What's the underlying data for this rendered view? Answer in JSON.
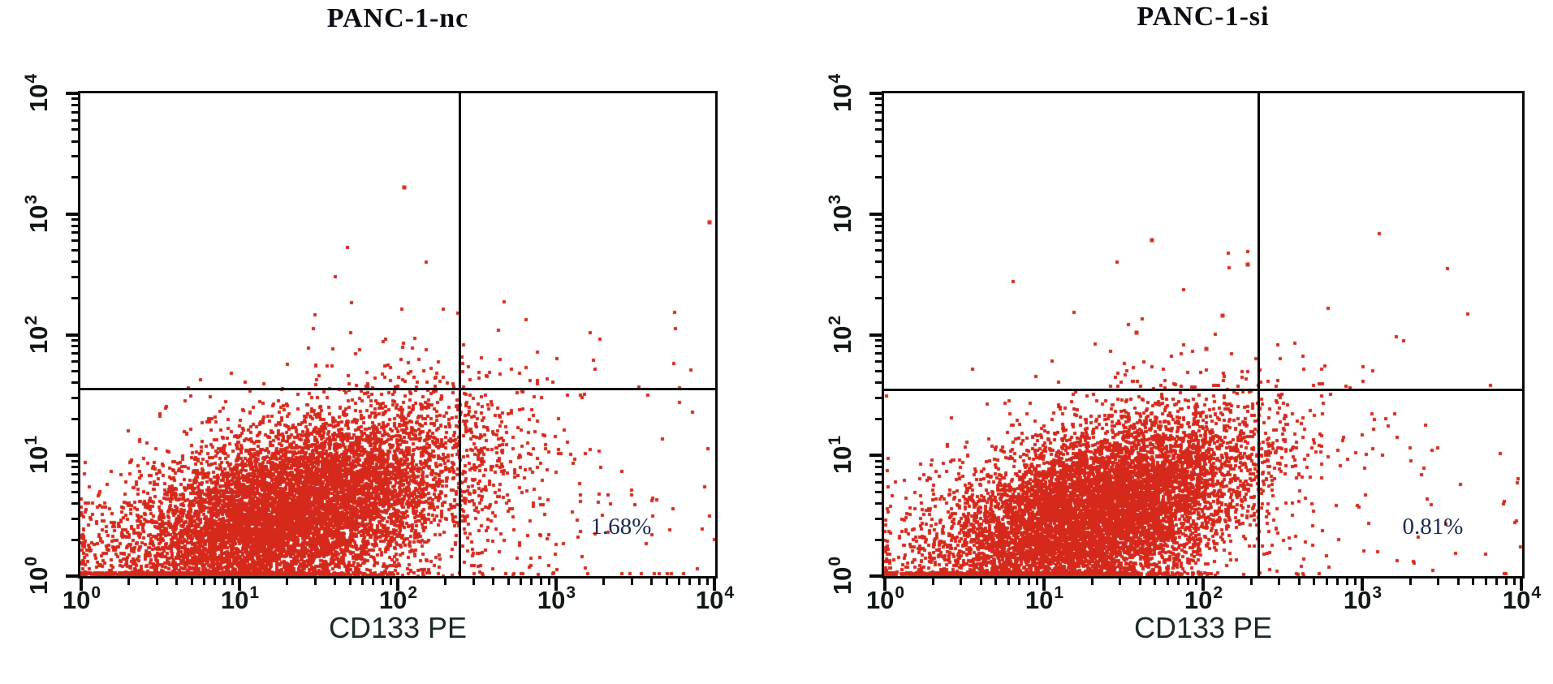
{
  "figure": {
    "background_color": "#ffffff",
    "axis_color": "#0a0a0a",
    "dot_color": "#d5291c",
    "title_color": "#0b0b13",
    "percent_label_color": "#1b2a4e",
    "x_axis_label_color": "#1c2a29"
  },
  "chart_data": [
    {
      "type": "scatter",
      "title": "PANC-1-nc",
      "xlabel": "CD133 PE",
      "ylabel": "",
      "xscale": "log",
      "yscale": "log",
      "xlim": [
        1,
        10000
      ],
      "ylim": [
        1,
        10000
      ],
      "tick_base": "10",
      "x_tick_exponents": [
        0,
        1,
        2,
        3,
        4
      ],
      "y_tick_exponents": [
        0,
        1,
        2,
        3,
        4
      ],
      "grid": false,
      "quadrant_gate": {
        "x": 245,
        "y": 36
      },
      "quadrant_label": {
        "text": "1.68%",
        "quadrant": "lower-right"
      },
      "population": {
        "name": "PANC-1-nc cells",
        "seed": 42,
        "n_core": 9000,
        "center_log": [
          1.32,
          0.52
        ],
        "sigma_log": [
          0.55,
          0.42
        ],
        "correlation": 0.5,
        "n_halo": 560,
        "halo_scale": 1.85,
        "n_positive": 115,
        "color": "#d5291c"
      },
      "outliers_log": [
        [
          2.04,
          3.22
        ],
        [
          3.97,
          2.93
        ]
      ]
    },
    {
      "type": "scatter",
      "title": "PANC-1-si",
      "xlabel": "CD133 PE",
      "ylabel": "",
      "xscale": "log",
      "yscale": "log",
      "xlim": [
        1,
        10000
      ],
      "ylim": [
        1,
        10000
      ],
      "tick_base": "10",
      "x_tick_exponents": [
        0,
        1,
        2,
        3,
        4
      ],
      "y_tick_exponents": [
        0,
        1,
        2,
        3,
        4
      ],
      "grid": false,
      "quadrant_gate": {
        "x": 222,
        "y": 35
      },
      "quadrant_label": {
        "text": "0.81%",
        "quadrant": "lower-right"
      },
      "population": {
        "name": "PANC-1-si cells",
        "seed": 1337,
        "n_core": 8800,
        "center_log": [
          1.3,
          0.5
        ],
        "sigma_log": [
          0.5,
          0.4
        ],
        "correlation": 0.5,
        "n_halo": 470,
        "halo_scale": 1.8,
        "n_positive": 55,
        "color": "#d5291c"
      },
      "outliers_log": [
        [
          1.68,
          2.78
        ],
        [
          2.28,
          2.58
        ],
        [
          1.58,
          2.02
        ],
        [
          2.02,
          1.88
        ],
        [
          2.12,
          2.16
        ]
      ]
    }
  ]
}
